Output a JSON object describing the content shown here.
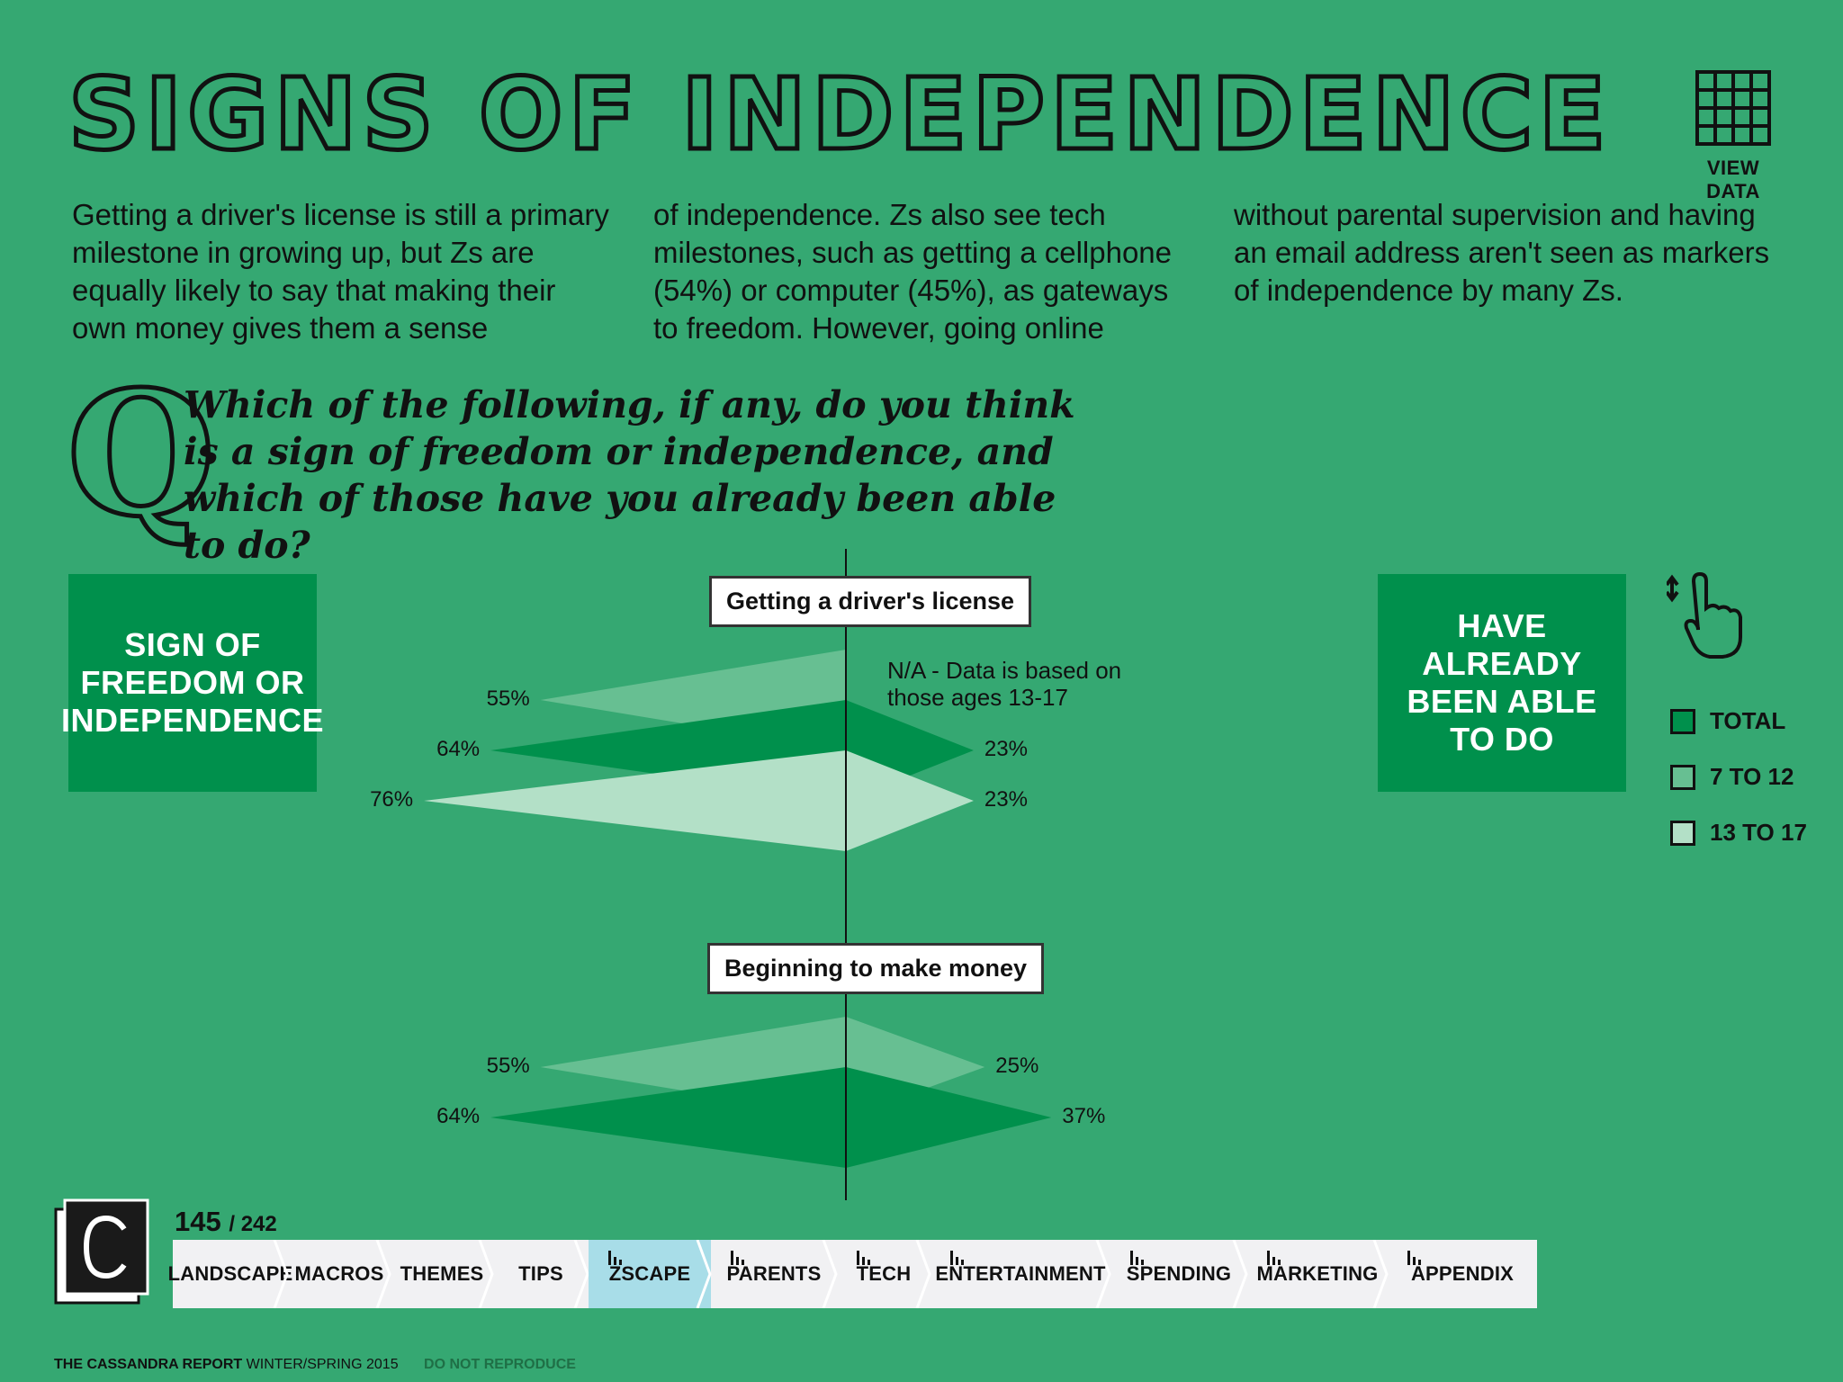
{
  "header": {
    "title": "SIGNS OF INDEPENDENCE",
    "view_data_label": "VIEW DATA"
  },
  "intro": {
    "col1": "Getting a driver's license is still a primary milestone in growing up, but Zs are equally likely to say that making their own money gives them a sense",
    "col2": "of independence. Zs also see tech milestones, such as getting a cellphone (54%) or computer (45%), as gateways to freedom. However, going online",
    "col3": "without parental supervision and having an email address aren't seen as markers of independence by many Zs."
  },
  "question": {
    "letter": "Q",
    "text": "Which of the following, if any, do you think is a sign of freedom or independence, and which of those have you already been able to do?"
  },
  "left_box": "SIGN OF\nFREEDOM OR\nINDEPENDENCE",
  "right_box": "HAVE ALREADY\nBEEN ABLE\nTO DO",
  "legend": [
    {
      "label": "TOTAL",
      "color": "#00904c"
    },
    {
      "label": "7 TO 12",
      "color": "#67bf92"
    },
    {
      "label": "13 TO 17",
      "color": "#b3e0c7"
    }
  ],
  "chart_data": {
    "type": "bar",
    "series_names": [
      "7 TO 12",
      "TOTAL",
      "13 TO 17"
    ],
    "colors": {
      "7 TO 12": "#67bf92",
      "TOTAL": "#00904c",
      "13 TO 17": "#b3e0c7"
    },
    "categories": [
      {
        "name": "Getting a driver's license",
        "sign_of_freedom": {
          "7 TO 12": 55,
          "TOTAL": 64,
          "13 TO 17": 76
        },
        "already_done": {
          "7 TO 12": null,
          "TOTAL": 23,
          "13 TO 17": 23
        },
        "labels_left": {
          "7 TO 12": "55%",
          "TOTAL": "64%",
          "13 TO 17": "76%"
        },
        "labels_right": {
          "TOTAL": "23%",
          "13 TO 17": "23%"
        },
        "note": "N/A - Data is based on those ages 13-17"
      },
      {
        "name": "Beginning to make money",
        "sign_of_freedom": {
          "7 TO 12": 55,
          "TOTAL": 64,
          "13 TO 17": null
        },
        "already_done": {
          "7 TO 12": 25,
          "TOTAL": 37,
          "13 TO 17": null
        },
        "labels_left": {
          "7 TO 12": "55%",
          "TOTAL": "64%"
        },
        "labels_right": {
          "7 TO 12": "25%",
          "TOTAL": "37%"
        }
      }
    ]
  },
  "page": {
    "current": "145",
    "total": "/ 242"
  },
  "nav": [
    {
      "label": "LANDSCAPE",
      "bars": false,
      "active": false
    },
    {
      "label": "MACROS",
      "bars": false,
      "active": false
    },
    {
      "label": "THEMES",
      "bars": false,
      "active": false
    },
    {
      "label": "TIPS",
      "bars": false,
      "active": false
    },
    {
      "label": "ZSCAPE",
      "bars": true,
      "active": true
    },
    {
      "label": "PARENTS",
      "bars": true,
      "active": false
    },
    {
      "label": "TECH",
      "bars": true,
      "active": false
    },
    {
      "label": "ENTERTAINMENT",
      "bars": true,
      "active": false
    },
    {
      "label": "SPENDING",
      "bars": true,
      "active": false
    },
    {
      "label": "MARKETING",
      "bars": true,
      "active": false
    },
    {
      "label": "APPENDIX",
      "bars": true,
      "active": false
    }
  ],
  "footer": {
    "brand": "THE CASSANDRA REPORT",
    "edition": "WINTER/SPRING 2015",
    "notice": "DO NOT REPRODUCE"
  },
  "icons": {
    "grid": "grid-icon",
    "hand": "hand-pointer-icon",
    "logo": "cassandra-logo-icon"
  }
}
